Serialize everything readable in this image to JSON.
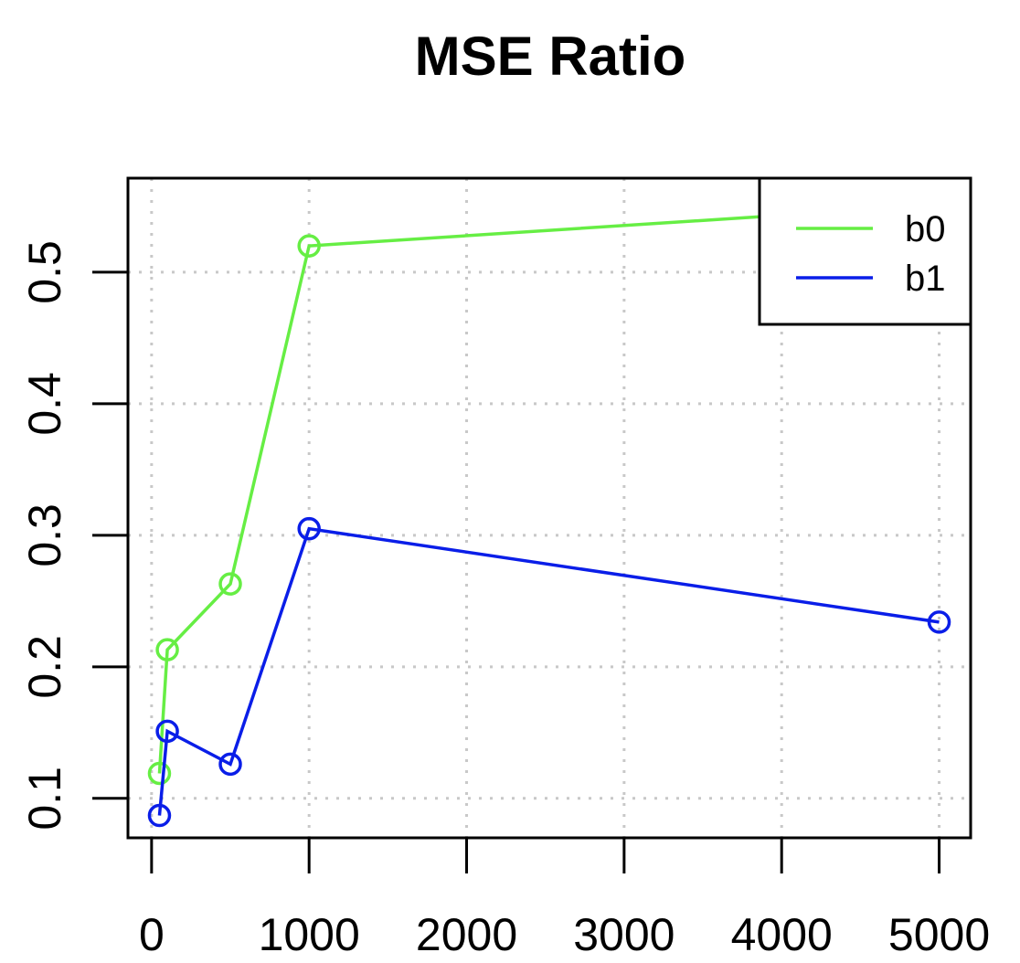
{
  "chart_data": {
    "type": "line",
    "title": "MSE Ratio",
    "xlabel": "",
    "ylabel": "",
    "xlim": [
      -150,
      5200
    ],
    "ylim": [
      0.07,
      0.5715
    ],
    "x_ticks": [
      {
        "value": 0,
        "label": "0"
      },
      {
        "value": 1000,
        "label": "1000"
      },
      {
        "value": 2000,
        "label": "2000"
      },
      {
        "value": 3000,
        "label": "3000"
      },
      {
        "value": 4000,
        "label": "4000"
      },
      {
        "value": 5000,
        "label": "5000"
      }
    ],
    "y_ticks": [
      {
        "value": 0.1,
        "label": "0.1"
      },
      {
        "value": 0.2,
        "label": "0.2"
      },
      {
        "value": 0.3,
        "label": "0.3"
      },
      {
        "value": 0.4,
        "label": "0.4"
      },
      {
        "value": 0.5,
        "label": "0.5"
      }
    ],
    "grid": true,
    "legend_position": "top-right",
    "x": [
      50,
      100,
      500,
      1000,
      5000
    ],
    "series": [
      {
        "name": "b0",
        "color": "#66ee44",
        "values": [
          0.119,
          0.213,
          0.263,
          0.52,
          0.551
        ]
      },
      {
        "name": "b1",
        "color": "#0a1ee8",
        "values": [
          0.087,
          0.151,
          0.126,
          0.305,
          0.234
        ]
      }
    ]
  }
}
